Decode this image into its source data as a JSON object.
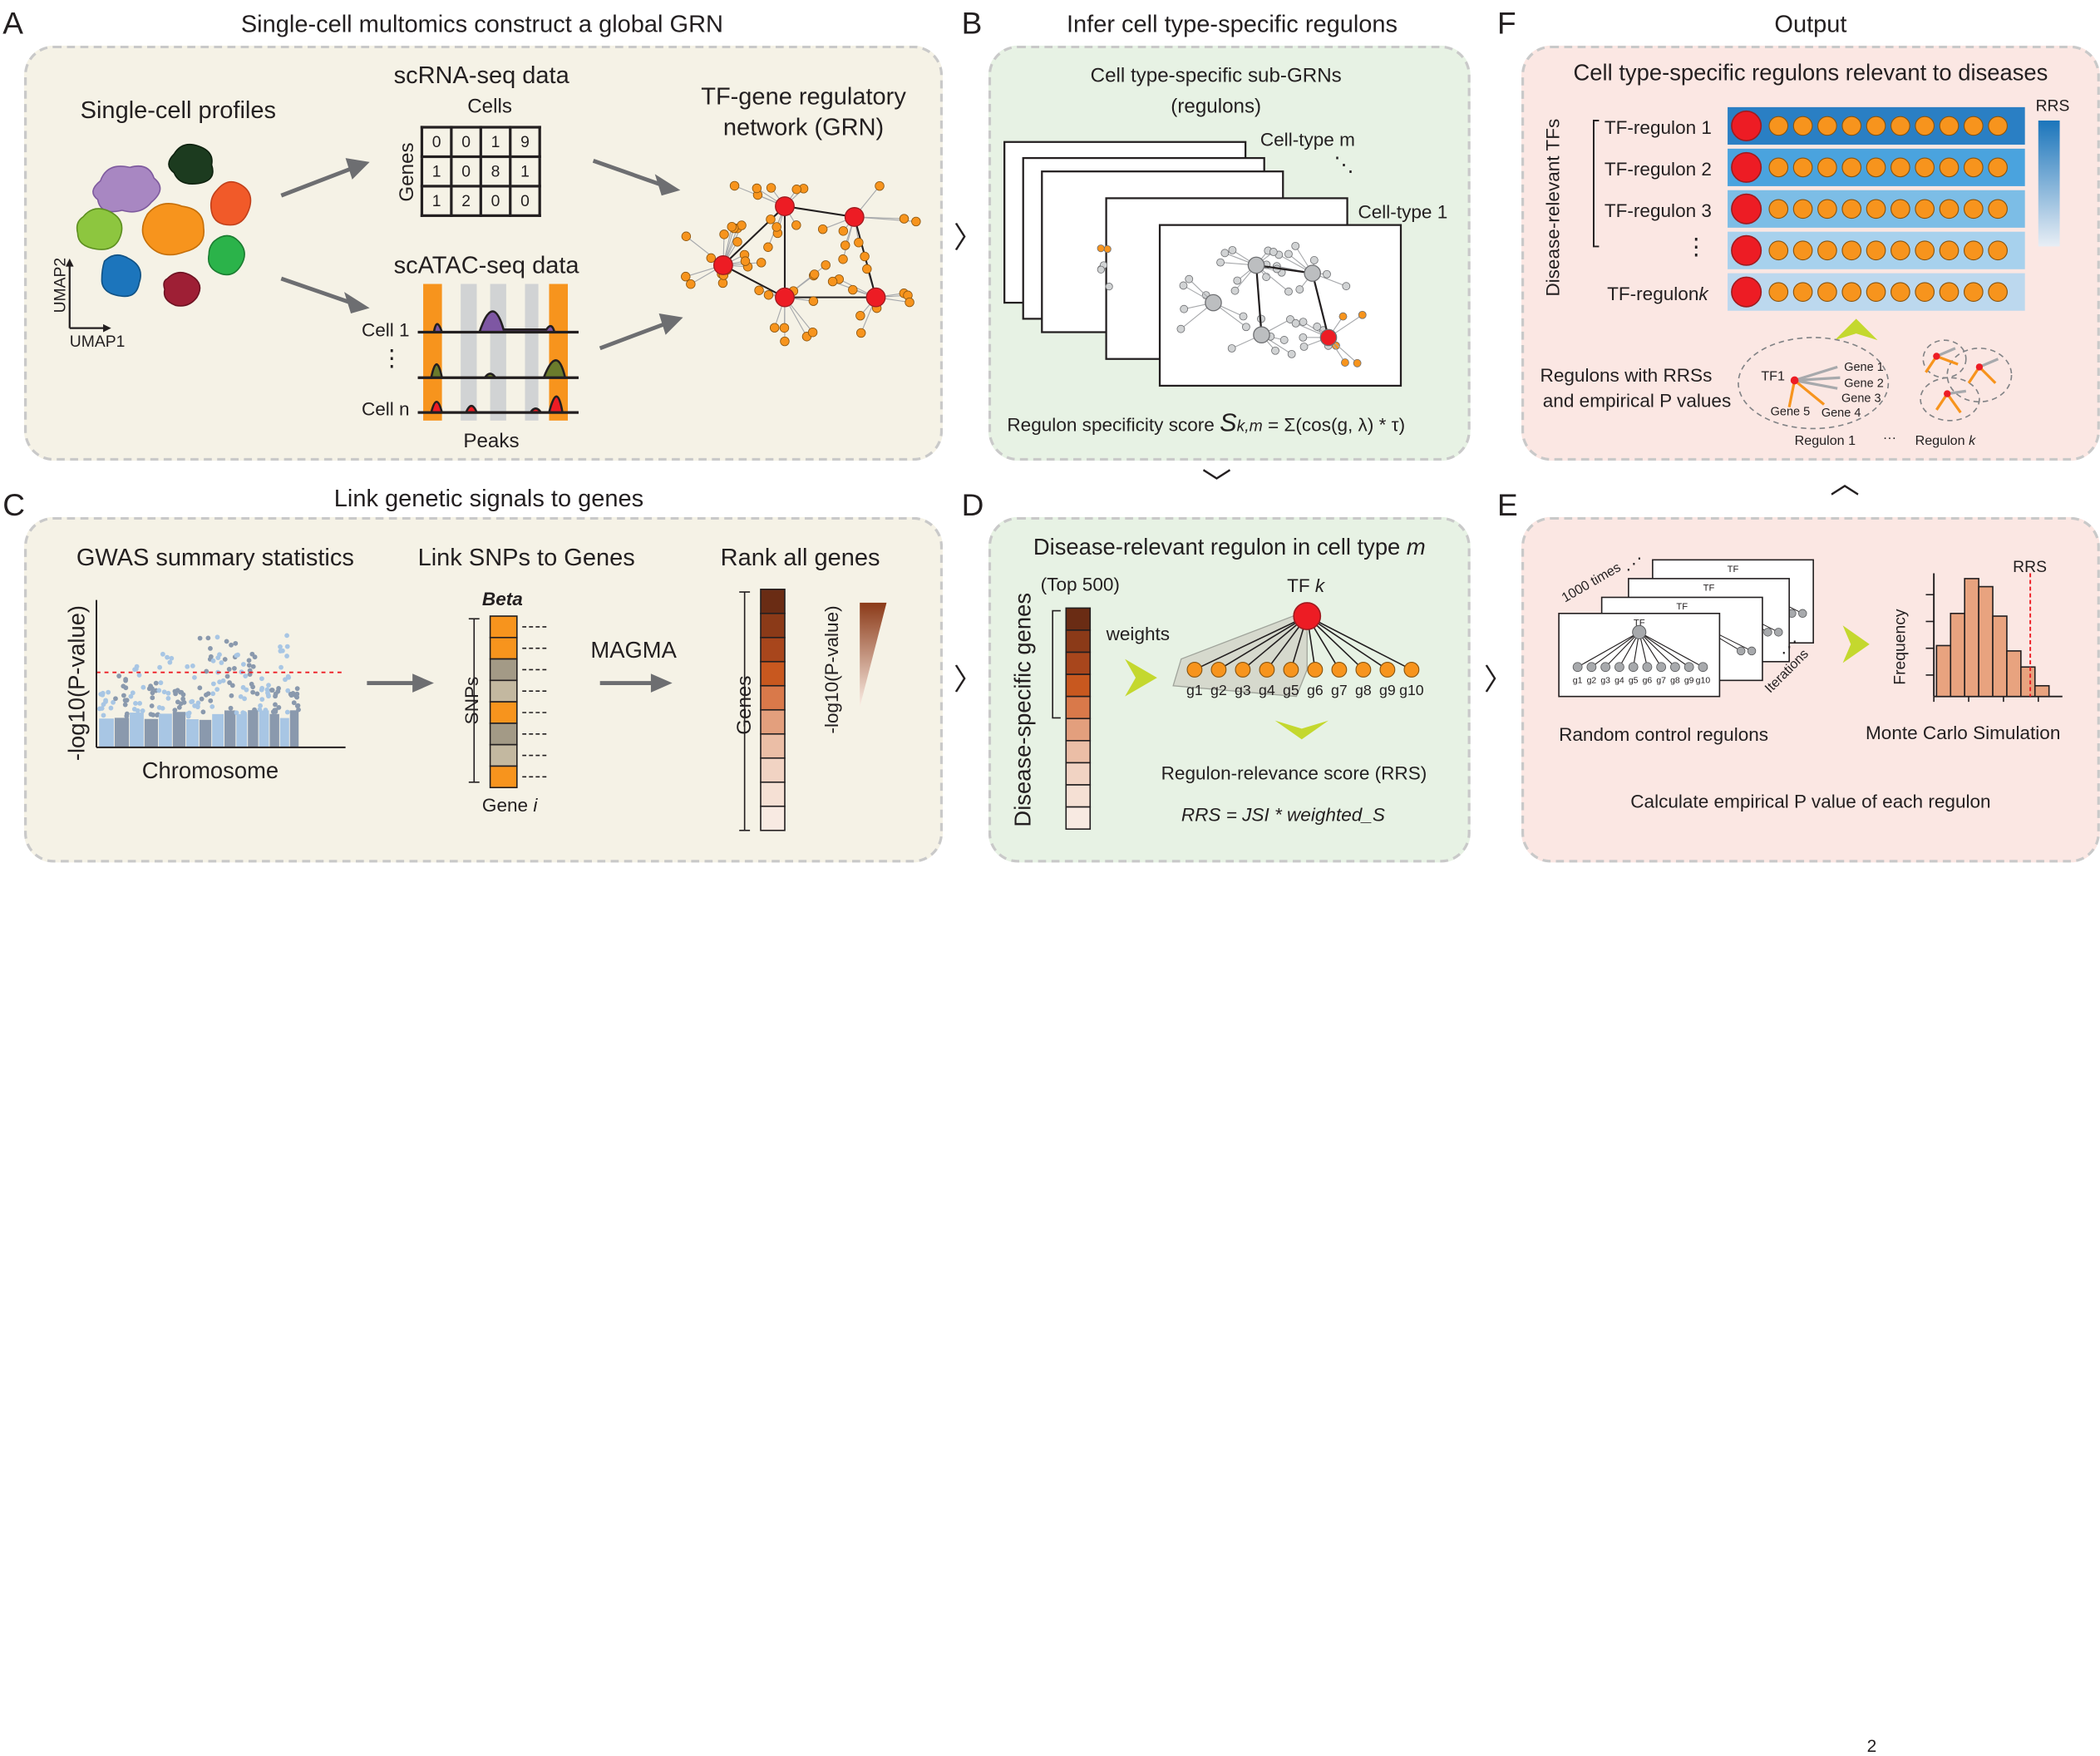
{
  "panels": {
    "A": {
      "letter": "A",
      "title": "Single-cell multomics construct a global GRN",
      "single_cell_profiles": "Single-cell profiles",
      "umap1": "UMAP1",
      "umap2": "UMAP2",
      "scrna_title": "scRNA-seq data",
      "cells_label": "Cells",
      "genes_label": "Genes",
      "matrix": [
        [
          "0",
          "0",
          "1",
          "9"
        ],
        [
          "1",
          "0",
          "8",
          "1"
        ],
        [
          "1",
          "2",
          "0",
          "0"
        ]
      ],
      "scatac_title": "scATAC-seq data",
      "cell1": "Cell 1",
      "celln": "Cell n",
      "dots": "⋮",
      "peaks": "Peaks",
      "grn_title_1": "TF-gene regulatory",
      "grn_title_2": "network (GRN)"
    },
    "B": {
      "letter": "B",
      "title": "Infer cell type-specific regulons",
      "sub_title_1": "Cell type-specific sub-GRNs",
      "sub_title_2": "(regulons)",
      "celltype_m": "Cell-type m",
      "celltype_1": "Cell-type 1",
      "ellipsis": "⋱",
      "score_prefix": "Regulon specificity score",
      "score_symbol": "S",
      "score_sub": "k,m",
      "score_formula": "= Σ(cos(g, λ) * τ)"
    },
    "C": {
      "letter": "C",
      "title": "Link genetic signals to genes",
      "gwas_title": "GWAS summary statistics",
      "ylabel": "-log10(P-value)",
      "xlabel": "Chromosome",
      "link_title": "Link SNPs to Genes",
      "beta": "Beta",
      "snps": "SNPs",
      "gene_i_prefix": "Gene",
      "gene_i_var": "i",
      "magma": "MAGMA",
      "rank_title": "Rank all genes",
      "genes": "Genes",
      "rank_ylabel": "-log10(P-value)"
    },
    "D": {
      "letter": "D",
      "title_prefix": "Disease-relevant regulon in cell type",
      "title_var": "m",
      "top500": "(Top 500)",
      "weights": "weights",
      "disease_genes": "Disease-specific genes",
      "tf_prefix": "TF",
      "tf_var": "k",
      "genes": [
        "g1",
        "g2",
        "g3",
        "g4",
        "g5",
        "g6",
        "g7",
        "g8",
        "g9",
        "g10"
      ],
      "rrs_label": "Regulon-relevance score (RRS)",
      "rrs_formula": "RRS = JSI * weighted_S"
    },
    "E": {
      "letter": "E",
      "times": "1000 times",
      "iterations": "Iterations",
      "tf": "TF",
      "genes": [
        "g1",
        "g2",
        "g3",
        "g4",
        "g5",
        "g6",
        "g7",
        "g8",
        "g9",
        "g10"
      ],
      "random_label": "Random control regulons",
      "frequency": "Frequency",
      "rrs": "RRS",
      "monte_carlo": "Monte Carlo Simulation",
      "bottom": "Calculate empirical P value of each regulon"
    },
    "F": {
      "letter": "F",
      "title": "Output",
      "subtitle": "Cell type-specific regulons relevant to diseases",
      "rrs": "RRS",
      "disease_tfs": "Disease-relevant TFs",
      "regulons": [
        "TF-regulon 1",
        "TF-regulon 2",
        "TF-regulon 3"
      ],
      "dots": "⋮",
      "regulon_k_prefix": "TF-regulon",
      "regulon_k_var": "k",
      "rrss_1": "Regulons with RRSs",
      "rrss_2": "and empirical P values",
      "tf1": "TF1",
      "gene_labels": [
        "Gene 1",
        "Gene 2",
        "Gene 3",
        "Gene 4",
        "Gene 5"
      ],
      "regulon1": "Regulon 1",
      "ellipsis": "···",
      "regulonk_prefix": "Regulon",
      "regulonk_var": "k"
    }
  },
  "page_number": "2",
  "colors": {
    "orange": "#f7941d",
    "red": "#ed1c24",
    "grey_node": "#bcbec0",
    "beige_panel": "#f5f2e6",
    "green_panel": "#e7f2e4",
    "pink_panel": "#fbe7e3",
    "lime_arrow": "#c4d82e"
  }
}
